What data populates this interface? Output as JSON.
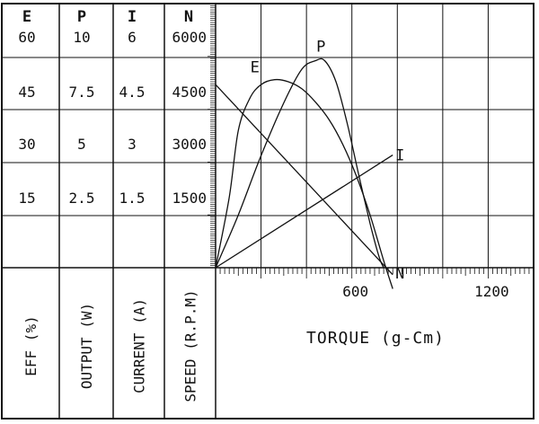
{
  "chart_data": {
    "type": "line",
    "xlabel": "TORQUE (g-Cm)",
    "x_ticks": [
      "600",
      "1200"
    ],
    "xlim": [
      0,
      1400
    ],
    "columns": [
      {
        "header": "E",
        "axis_label": "EFF (%)",
        "ticks": [
          "60",
          "45",
          "30",
          "15"
        ],
        "ylim": [
          0,
          75
        ]
      },
      {
        "header": "P",
        "axis_label": "OUTPUT (W)",
        "ticks": [
          "10",
          "7.5",
          "5",
          "2.5"
        ],
        "ylim": [
          0,
          12.5
        ]
      },
      {
        "header": "I",
        "axis_label": "CURRENT (A)",
        "ticks": [
          "6",
          "4.5",
          "3",
          "1.5"
        ],
        "ylim": [
          0,
          7.5
        ]
      },
      {
        "header": "N",
        "axis_label": "SPEED (R.P.M)",
        "ticks": [
          "6000",
          "4500",
          "3000",
          "1500"
        ],
        "ylim": [
          0,
          7500
        ]
      }
    ],
    "series": [
      {
        "name": "E",
        "axis": 0,
        "x": [
          0,
          60,
          100,
          150,
          200,
          260,
          320,
          380,
          440,
          500,
          560,
          620,
          680,
          740,
          780
        ],
        "y": [
          0,
          20,
          39,
          48,
          52,
          53.4,
          52.8,
          50.8,
          47,
          42,
          35,
          26,
          15,
          2,
          -6
        ]
      },
      {
        "name": "P",
        "axis": 1,
        "x": [
          0,
          100,
          200,
          300,
          380,
          440,
          480,
          530,
          580,
          630,
          680,
          720,
          740
        ],
        "y": [
          0,
          2.5,
          5.3,
          7.8,
          9.4,
          9.8,
          9.8,
          8.8,
          6.8,
          4.4,
          2.1,
          0.5,
          0
        ]
      },
      {
        "name": "I",
        "axis": 2,
        "x": [
          0,
          780
        ],
        "y": [
          0,
          3.2
        ]
      },
      {
        "name": "N",
        "axis": 3,
        "x": [
          0,
          780
        ],
        "y": [
          5200,
          -200
        ]
      }
    ]
  }
}
